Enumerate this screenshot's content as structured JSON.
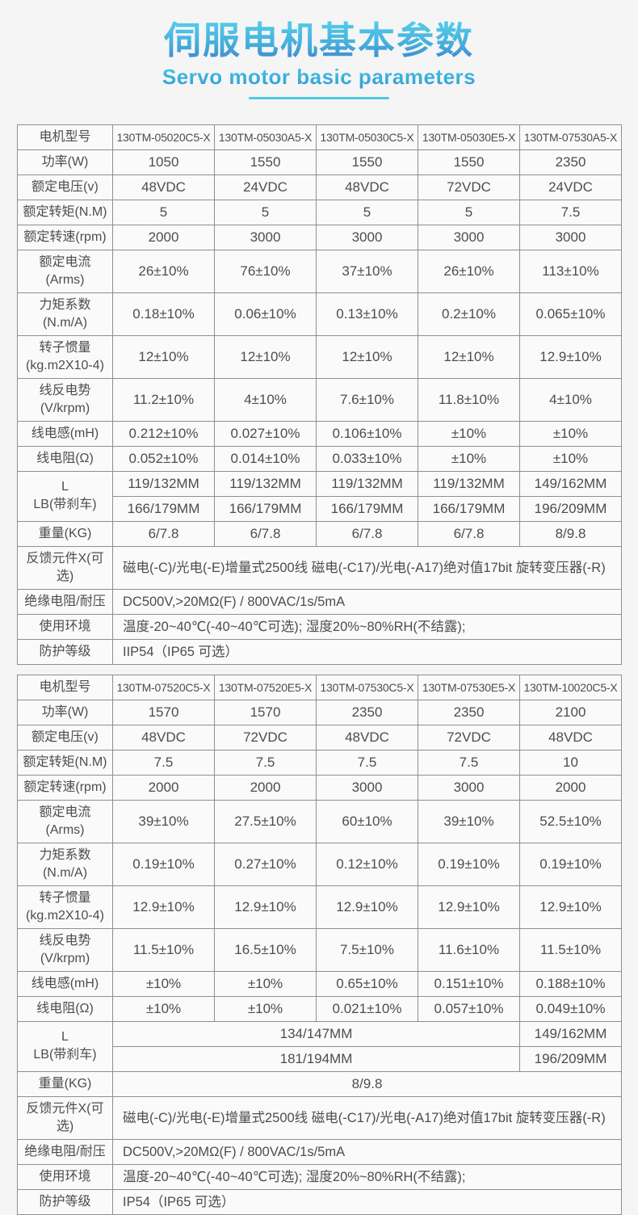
{
  "header": {
    "title": "伺服电机基本参数",
    "subtitle": "Servo motor basic parameters",
    "accent_gradient_top": "#56cfeb",
    "accent_gradient_bottom": "#3e86cc",
    "underline_color": "#4cc9e7",
    "text_color": "#4d4d4d",
    "border_color": "#8f8f8f",
    "cell_background": "#fafafa",
    "page_background": "#f5f5f5"
  },
  "tables": [
    {
      "name": "servo-spec-table-1",
      "rows": [
        [
          {
            "t": "电机型号",
            "h": 1
          },
          {
            "t": "130TM-05020C5-X",
            "m": 1
          },
          {
            "t": "130TM-05030A5-X",
            "m": 1
          },
          {
            "t": "130TM-05030C5-X",
            "m": 1
          },
          {
            "t": "130TM-05030E5-X",
            "m": 1
          },
          {
            "t": "130TM-07530A5-X",
            "m": 1
          }
        ],
        [
          {
            "t": "功率(W)",
            "h": 1
          },
          {
            "t": "1050"
          },
          {
            "t": "1550"
          },
          {
            "t": "1550"
          },
          {
            "t": "1550"
          },
          {
            "t": "2350"
          }
        ],
        [
          {
            "t": "额定电压(v)",
            "h": 1
          },
          {
            "t": "48VDC"
          },
          {
            "t": "24VDC"
          },
          {
            "t": "48VDC"
          },
          {
            "t": "72VDC"
          },
          {
            "t": "24VDC"
          }
        ],
        [
          {
            "t": "额定转矩(N.M)",
            "h": 1
          },
          {
            "t": "5"
          },
          {
            "t": "5"
          },
          {
            "t": "5"
          },
          {
            "t": "5"
          },
          {
            "t": "7.5"
          }
        ],
        [
          {
            "t": "额定转速(rpm)",
            "h": 1
          },
          {
            "t": "2000"
          },
          {
            "t": "3000"
          },
          {
            "t": "3000"
          },
          {
            "t": "3000"
          },
          {
            "t": "3000"
          }
        ],
        [
          {
            "t": "额定电流(Arms)",
            "h": 1
          },
          {
            "t": "26±10%"
          },
          {
            "t": "76±10%"
          },
          {
            "t": "37±10%"
          },
          {
            "t": "26±10%"
          },
          {
            "t": "113±10%"
          }
        ],
        [
          {
            "t": "力矩系数\n(N.m/A)",
            "h": 1
          },
          {
            "t": "0.18±10%"
          },
          {
            "t": "0.06±10%"
          },
          {
            "t": "0.13±10%"
          },
          {
            "t": "0.2±10%"
          },
          {
            "t": "0.065±10%"
          }
        ],
        [
          {
            "t": "转子惯量\n(kg.m2X10-4)",
            "h": 1
          },
          {
            "t": "12±10%"
          },
          {
            "t": "12±10%"
          },
          {
            "t": "12±10%"
          },
          {
            "t": "12±10%"
          },
          {
            "t": "12.9±10%"
          }
        ],
        [
          {
            "t": "线反电势\n(V/krpm)",
            "h": 1
          },
          {
            "t": "11.2±10%"
          },
          {
            "t": "4±10%"
          },
          {
            "t": "7.6±10%"
          },
          {
            "t": "11.8±10%"
          },
          {
            "t": "4±10%"
          }
        ],
        [
          {
            "t": "线电感(mH)",
            "h": 1
          },
          {
            "t": "0.212±10%"
          },
          {
            "t": "0.027±10%"
          },
          {
            "t": "0.106±10%"
          },
          {
            "t": "±10%"
          },
          {
            "t": "±10%"
          }
        ],
        [
          {
            "t": "线电阻(Ω)",
            "h": 1
          },
          {
            "t": "0.052±10%"
          },
          {
            "t": "0.014±10%"
          },
          {
            "t": "0.033±10%"
          },
          {
            "t": "±10%"
          },
          {
            "t": "±10%"
          }
        ],
        [
          {
            "t": "L\nLB(带刹车)",
            "h": 1,
            "rs": 2
          },
          {
            "t": "119/132MM"
          },
          {
            "t": "119/132MM"
          },
          {
            "t": "119/132MM"
          },
          {
            "t": "119/132MM"
          },
          {
            "t": "149/162MM"
          }
        ],
        [
          {
            "t": "166/179MM"
          },
          {
            "t": "166/179MM"
          },
          {
            "t": "166/179MM"
          },
          {
            "t": "166/179MM"
          },
          {
            "t": "196/209MM"
          }
        ],
        [
          {
            "t": "重量(KG)",
            "h": 1
          },
          {
            "t": "6/7.8"
          },
          {
            "t": "6/7.8"
          },
          {
            "t": "6/7.8"
          },
          {
            "t": "6/7.8"
          },
          {
            "t": "8/9.8"
          }
        ],
        [
          {
            "t": "反馈元件X(可选)",
            "h": 1
          },
          {
            "t": "磁电(-C)/光电(-E)增量式2500线  磁电(-C17)/光电(-A17)绝对值17bit 旋转变压器(-R)",
            "cs": 5,
            "l": 1
          }
        ],
        [
          {
            "t": "绝缘电阻/耐压",
            "h": 1
          },
          {
            "t": "DC500V,>20MΩ(F) / 800VAC/1s/5mA",
            "cs": 5,
            "l": 1
          }
        ],
        [
          {
            "t": "使用环境",
            "h": 1
          },
          {
            "t": "温度-20~40℃(-40~40℃可选); 湿度20%~80%RH(不结露);",
            "cs": 5,
            "l": 1
          }
        ],
        [
          {
            "t": "防护等级",
            "h": 1
          },
          {
            "t": "IIP54（IP65 可选）",
            "cs": 5,
            "l": 1
          }
        ]
      ]
    },
    {
      "name": "servo-spec-table-2",
      "rows": [
        [
          {
            "t": "电机型号",
            "h": 1
          },
          {
            "t": "130TM-07520C5-X",
            "m": 1
          },
          {
            "t": "130TM-07520E5-X",
            "m": 1
          },
          {
            "t": "130TM-07530C5-X",
            "m": 1
          },
          {
            "t": "130TM-07530E5-X",
            "m": 1
          },
          {
            "t": "130TM-10020C5-X",
            "m": 1
          }
        ],
        [
          {
            "t": "功率(W)",
            "h": 1
          },
          {
            "t": "1570"
          },
          {
            "t": "1570"
          },
          {
            "t": "2350"
          },
          {
            "t": "2350"
          },
          {
            "t": "2100"
          }
        ],
        [
          {
            "t": "额定电压(v)",
            "h": 1
          },
          {
            "t": "48VDC"
          },
          {
            "t": "72VDC"
          },
          {
            "t": "48VDC"
          },
          {
            "t": "72VDC"
          },
          {
            "t": "48VDC"
          }
        ],
        [
          {
            "t": "额定转矩(N.M)",
            "h": 1
          },
          {
            "t": "7.5"
          },
          {
            "t": "7.5"
          },
          {
            "t": "7.5"
          },
          {
            "t": "7.5"
          },
          {
            "t": "10"
          }
        ],
        [
          {
            "t": "额定转速(rpm)",
            "h": 1
          },
          {
            "t": "2000"
          },
          {
            "t": "2000"
          },
          {
            "t": "3000"
          },
          {
            "t": "3000"
          },
          {
            "t": "2000"
          }
        ],
        [
          {
            "t": "额定电流(Arms)",
            "h": 1
          },
          {
            "t": "39±10%"
          },
          {
            "t": "27.5±10%"
          },
          {
            "t": "60±10%"
          },
          {
            "t": "39±10%"
          },
          {
            "t": "52.5±10%"
          }
        ],
        [
          {
            "t": "力矩系数\n(N.m/A)",
            "h": 1
          },
          {
            "t": "0.19±10%"
          },
          {
            "t": "0.27±10%"
          },
          {
            "t": "0.12±10%"
          },
          {
            "t": "0.19±10%"
          },
          {
            "t": "0.19±10%"
          }
        ],
        [
          {
            "t": "转子惯量\n(kg.m2X10-4)",
            "h": 1
          },
          {
            "t": "12.9±10%"
          },
          {
            "t": "12.9±10%"
          },
          {
            "t": "12.9±10%"
          },
          {
            "t": "12.9±10%"
          },
          {
            "t": "12.9±10%"
          }
        ],
        [
          {
            "t": "线反电势\n(V/krpm)",
            "h": 1
          },
          {
            "t": "11.5±10%"
          },
          {
            "t": "16.5±10%"
          },
          {
            "t": "7.5±10%"
          },
          {
            "t": "11.6±10%"
          },
          {
            "t": "11.5±10%"
          }
        ],
        [
          {
            "t": "线电感(mH)",
            "h": 1
          },
          {
            "t": "±10%"
          },
          {
            "t": "±10%"
          },
          {
            "t": "0.65±10%"
          },
          {
            "t": "0.151±10%"
          },
          {
            "t": "0.188±10%"
          }
        ],
        [
          {
            "t": "线电阻(Ω)",
            "h": 1
          },
          {
            "t": "±10%"
          },
          {
            "t": "±10%"
          },
          {
            "t": "0.021±10%"
          },
          {
            "t": "0.057±10%"
          },
          {
            "t": "0.049±10%"
          }
        ],
        [
          {
            "t": "L\nLB(带刹车)",
            "h": 1,
            "rs": 2
          },
          {
            "t": "134/147MM",
            "cs": 4
          },
          {
            "t": "149/162MM"
          }
        ],
        [
          {
            "t": "181/194MM",
            "cs": 4
          },
          {
            "t": "196/209MM"
          }
        ],
        [
          {
            "t": "重量(KG)",
            "h": 1
          },
          {
            "t": "8/9.8",
            "cs": 5
          }
        ],
        [
          {
            "t": "反馈元件X(可选)",
            "h": 1
          },
          {
            "t": "磁电(-C)/光电(-E)增量式2500线  磁电(-C17)/光电(-A17)绝对值17bit 旋转变压器(-R)",
            "cs": 5,
            "l": 1
          }
        ],
        [
          {
            "t": "绝缘电阻/耐压",
            "h": 1
          },
          {
            "t": "DC500V,>20MΩ(F) / 800VAC/1s/5mA",
            "cs": 5,
            "l": 1
          }
        ],
        [
          {
            "t": "使用环境",
            "h": 1
          },
          {
            "t": "温度-20~40℃(-40~40℃可选); 湿度20%~80%RH(不结露);",
            "cs": 5,
            "l": 1
          }
        ],
        [
          {
            "t": "防护等级",
            "h": 1
          },
          {
            "t": "IP54（IP65 可选）",
            "cs": 5,
            "l": 1
          }
        ]
      ]
    }
  ]
}
